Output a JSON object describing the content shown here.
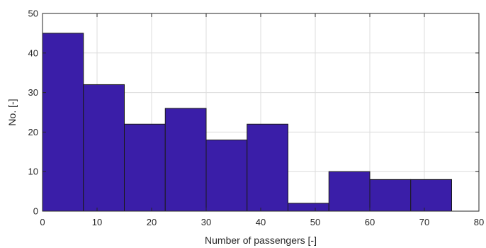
{
  "chart_data": {
    "type": "bar",
    "subtype": "histogram",
    "xlabel": "Number of passengers [-]",
    "ylabel": "No. [-]",
    "xlim": [
      0,
      80
    ],
    "ylim": [
      0,
      50
    ],
    "xticks": [
      0,
      10,
      20,
      30,
      40,
      50,
      60,
      70,
      80
    ],
    "yticks": [
      0,
      10,
      20,
      30,
      40,
      50
    ],
    "xtick_labels": [
      "0",
      "10",
      "20",
      "30",
      "40",
      "50",
      "60",
      "70",
      "80"
    ],
    "ytick_labels": [
      "0",
      "10",
      "20",
      "30",
      "40",
      "50"
    ],
    "bin_edges": [
      0,
      7.5,
      15,
      22.5,
      30,
      37.5,
      45,
      52.5,
      60,
      67.5,
      75
    ],
    "values": [
      45,
      32,
      22,
      26,
      18,
      22,
      2,
      10,
      8,
      8
    ],
    "grid": true,
    "colors": {
      "bar_fill": "#3a1ea8",
      "bar_edge": "#1a1a1a",
      "grid": "#dcdcdc",
      "axis": "#262626"
    }
  }
}
